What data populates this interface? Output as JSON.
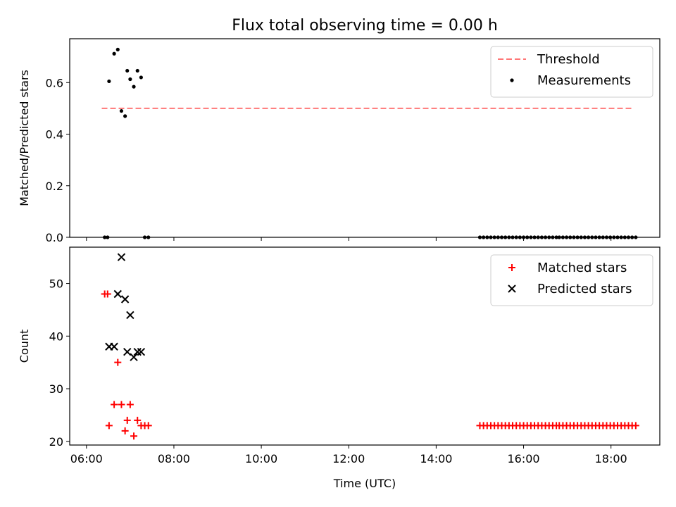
{
  "figure": {
    "title": "Flux total observing time = 0.00 h",
    "xlabel": "Time (UTC)"
  },
  "chart_data": [
    {
      "type": "scatter",
      "ylabel": "Matched/Predicted stars",
      "ylim": [
        0,
        0.77
      ],
      "xlim": [
        "05:37",
        "19:07"
      ],
      "yticks": [
        "0.0",
        "0.2",
        "0.4",
        "0.6"
      ],
      "ytick_values": [
        0,
        0.2,
        0.4,
        0.6
      ],
      "grid": false,
      "legend_position": "top-right",
      "threshold": {
        "name": "Threshold",
        "value": 0.5,
        "x_start": "06:21",
        "x_end": "18:29",
        "color": "#ff7777",
        "style": "dashed"
      },
      "series": [
        {
          "name": "Measurements",
          "color": "#000000",
          "marker": "dot",
          "points": [
            {
              "x": "06:25",
              "y": 0.0
            },
            {
              "x": "06:29",
              "y": 0.0
            },
            {
              "x": "06:31",
              "y": 0.605
            },
            {
              "x": "06:38",
              "y": 0.712
            },
            {
              "x": "06:43",
              "y": 0.728
            },
            {
              "x": "06:48",
              "y": 0.49
            },
            {
              "x": "06:53",
              "y": 0.47
            },
            {
              "x": "06:56",
              "y": 0.646
            },
            {
              "x": "07:00",
              "y": 0.613
            },
            {
              "x": "07:05",
              "y": 0.584
            },
            {
              "x": "07:10",
              "y": 0.646
            },
            {
              "x": "07:15",
              "y": 0.62
            },
            {
              "x": "07:20",
              "y": 0.0
            },
            {
              "x": "07:25",
              "y": 0.0
            },
            {
              "type": "repeat",
              "x_start": "15:00",
              "x_end": "18:34",
              "count": 44,
              "y": 0.0
            }
          ]
        }
      ]
    },
    {
      "type": "scatter",
      "ylabel": "Count",
      "ylim": [
        19.3,
        56.9
      ],
      "xlim": [
        "05:37",
        "19:07"
      ],
      "yticks": [
        "20",
        "30",
        "40",
        "50"
      ],
      "ytick_values": [
        20,
        30,
        40,
        50
      ],
      "xticks": [
        "06:00",
        "08:00",
        "10:00",
        "12:00",
        "14:00",
        "16:00",
        "18:00"
      ],
      "grid": false,
      "legend_position": "top-right",
      "series": [
        {
          "name": "Matched stars",
          "color": "#ff0000",
          "marker": "plus",
          "points": [
            {
              "x": "06:25",
              "y": 48
            },
            {
              "x": "06:29",
              "y": 48
            },
            {
              "x": "06:31",
              "y": 23
            },
            {
              "x": "06:38",
              "y": 27
            },
            {
              "x": "06:43",
              "y": 35
            },
            {
              "x": "06:48",
              "y": 27
            },
            {
              "x": "06:53",
              "y": 22
            },
            {
              "x": "06:56",
              "y": 24
            },
            {
              "x": "07:00",
              "y": 27
            },
            {
              "x": "07:05",
              "y": 21
            },
            {
              "x": "07:10",
              "y": 24
            },
            {
              "x": "07:15",
              "y": 23
            },
            {
              "x": "07:20",
              "y": 23
            },
            {
              "x": "07:25",
              "y": 23
            },
            {
              "type": "repeat",
              "x_start": "15:00",
              "x_end": "18:34",
              "count": 44,
              "y": 23
            }
          ]
        },
        {
          "name": "Predicted stars",
          "color": "#000000",
          "marker": "x",
          "points": [
            {
              "x": "06:31",
              "y": 38
            },
            {
              "x": "06:38",
              "y": 38
            },
            {
              "x": "06:43",
              "y": 48
            },
            {
              "x": "06:48",
              "y": 55
            },
            {
              "x": "06:53",
              "y": 47
            },
            {
              "x": "06:56",
              "y": 37
            },
            {
              "x": "07:00",
              "y": 44
            },
            {
              "x": "07:05",
              "y": 36
            },
            {
              "x": "07:10",
              "y": 37
            },
            {
              "x": "07:15",
              "y": 37
            }
          ]
        }
      ]
    }
  ]
}
